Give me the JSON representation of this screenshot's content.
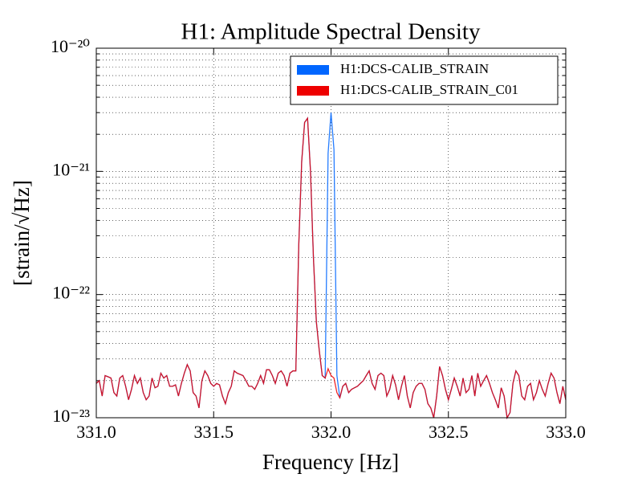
{
  "chart_data": {
    "type": "line",
    "title": "H1: Amplitude Spectral Density",
    "xlabel": "Frequency [Hz]",
    "ylabel": "[strain/√Hz]",
    "yscale": "log",
    "grid": true,
    "legend": "upper right",
    "xlim": [
      331,
      333
    ],
    "xticks": [
      {
        "value": 331,
        "label": "331.0"
      },
      331.5,
      {
        "value": 332,
        "label": "332.0"
      },
      332.5,
      {
        "value": 333,
        "label": "333.0"
      }
    ],
    "ylim": [
      1e-23,
      1e-20
    ],
    "yticks": [
      {
        "value": 1e-23,
        "label": "10⁻²³"
      },
      {
        "value": 1e-22,
        "label": "10⁻²²"
      },
      {
        "value": 1e-21,
        "label": "10⁻²¹"
      },
      {
        "value": 1e-20,
        "label": "10⁻²⁰"
      }
    ],
    "x": [
      331,
      331.0125,
      331.025,
      331.0375,
      331.05,
      331.0625,
      331.075,
      331.0875,
      331.1,
      331.1125,
      331.125,
      331.1375,
      331.15,
      331.1625,
      331.175,
      331.1875,
      331.2,
      331.2125,
      331.225,
      331.2375,
      331.25,
      331.2625,
      331.275,
      331.2875,
      331.3,
      331.3125,
      331.325,
      331.3375,
      331.35,
      331.3625,
      331.375,
      331.3875,
      331.4,
      331.4125,
      331.425,
      331.4375,
      331.45,
      331.4625,
      331.475,
      331.4875,
      331.5,
      331.5125,
      331.525,
      331.5375,
      331.55,
      331.5625,
      331.575,
      331.5875,
      331.6,
      331.6125,
      331.625,
      331.6375,
      331.65,
      331.6625,
      331.675,
      331.6875,
      331.7,
      331.7125,
      331.725,
      331.7375,
      331.75,
      331.7625,
      331.775,
      331.7875,
      331.8,
      331.8125,
      331.825,
      331.8375,
      331.85,
      331.8625,
      331.875,
      331.8875,
      331.9,
      331.9125,
      331.925,
      331.9375,
      331.95,
      331.9625,
      331.975,
      331.9875,
      332,
      332.0125,
      332.025,
      332.0375,
      332.05,
      332.0625,
      332.075,
      332.0875,
      332.1,
      332.1125,
      332.125,
      332.1375,
      332.15,
      332.1625,
      332.175,
      332.1875,
      332.2,
      332.2125,
      332.225,
      332.2375,
      332.25,
      332.2625,
      332.275,
      332.2875,
      332.3,
      332.3125,
      332.325,
      332.3375,
      332.35,
      332.3625,
      332.375,
      332.3875,
      332.4,
      332.4125,
      332.425,
      332.4375,
      332.45,
      332.4625,
      332.475,
      332.4875,
      332.5,
      332.5125,
      332.525,
      332.5375,
      332.55,
      332.5625,
      332.575,
      332.5875,
      332.6,
      332.6125,
      332.625,
      332.6375,
      332.65,
      332.6625,
      332.675,
      332.6875,
      332.7,
      332.7125,
      332.725,
      332.7375,
      332.75,
      332.7625,
      332.775,
      332.7875,
      332.8,
      332.8125,
      332.825,
      332.8375,
      332.85,
      332.8625,
      332.875,
      332.8875,
      332.9,
      332.9125,
      332.925,
      332.9375,
      332.95,
      332.9625,
      332.975,
      332.9875,
      333
    ],
    "series": [
      {
        "name": "H1:DCS-CALIB_STRAIN",
        "color": "#0066ff",
        "values": [
          1.9e-23,
          2e-23,
          1.5e-23,
          2.2e-23,
          2.15e-23,
          2.1e-23,
          1.6e-23,
          1.5e-23,
          2.1e-23,
          2.2e-23,
          1.8e-23,
          1.4e-23,
          1.7e-23,
          2.2e-23,
          1.9e-23,
          2.1e-23,
          1.6e-23,
          1.4e-23,
          1.5e-23,
          2.1e-23,
          1.75e-23,
          1.8e-23,
          2.3e-23,
          2.1e-23,
          2.2e-23,
          1.8e-23,
          1.8e-23,
          1.85e-23,
          1.5e-23,
          1.9e-23,
          2.3e-23,
          2.7e-23,
          2.4e-23,
          1.6e-23,
          1.5e-23,
          1.2e-23,
          2e-23,
          2.4e-23,
          2.2e-23,
          1.9e-23,
          1.8e-23,
          1.9e-23,
          1.85e-23,
          1.5e-23,
          1.3e-23,
          1.6e-23,
          1.8e-23,
          2.4e-23,
          2.3e-23,
          2.25e-23,
          2.2e-23,
          2e-23,
          1.8e-23,
          1.8e-23,
          1.7e-23,
          1.9e-23,
          2.2e-23,
          1.9e-23,
          2.45e-23,
          2.45e-23,
          2.2e-23,
          1.9e-23,
          2.3e-23,
          2.4e-23,
          2.2e-23,
          1.8e-23,
          2.3e-23,
          2.4e-23,
          2.4e-23,
          2.5e-22,
          1.2e-21,
          2.5e-21,
          2.7e-21,
          1e-21,
          2e-22,
          6e-23,
          3.5e-23,
          2.2e-23,
          2.1e-23,
          1.4e-21,
          3e-21,
          1.5e-21,
          2.2e-23,
          1.45e-23,
          1.8e-23,
          1.9e-23,
          1.6e-23,
          1.7e-23,
          1.75e-23,
          1.8e-23,
          1.9e-23,
          2e-23,
          2.2e-23,
          2.4e-23,
          1.9e-23,
          1.7e-23,
          2.2e-23,
          2.3e-23,
          2.2e-23,
          1.5e-23,
          1.7e-23,
          2.2e-23,
          1.85e-23,
          1.4e-23,
          1.8e-23,
          2.2e-23,
          1.5e-23,
          1.2e-23,
          1.6e-23,
          1.8e-23,
          1.9e-23,
          1.9e-23,
          1.7e-23,
          1.3e-23,
          1.2e-23,
          1e-23,
          1.5e-23,
          2.6e-23,
          2.2e-23,
          1.7e-23,
          1.4e-23,
          1.7e-23,
          2.1e-23,
          1.8e-23,
          1.5e-23,
          2.1e-23,
          1.6e-23,
          1.7e-23,
          2.2e-23,
          1.5e-23,
          2.3e-23,
          1.8e-23,
          2e-23,
          2.2e-23,
          1.9e-23,
          1.6e-23,
          1.4e-23,
          1.2e-23,
          1.75e-23,
          1.5e-23,
          1e-23,
          1.1e-23,
          1.9e-23,
          2.4e-23,
          2.2e-23,
          1.5e-23,
          1.4e-23,
          1.8e-23,
          1.9e-23,
          1.4e-23,
          1.6e-23,
          2e-23,
          1.7e-23,
          1.5e-23,
          1.9e-23,
          2.3e-23,
          2.1e-23,
          1.6e-23,
          1.3e-23,
          1.8e-23,
          1.4e-23
        ]
      },
      {
        "name": "H1:DCS-CALIB_STRAIN_C01",
        "color": "#ee0000",
        "values": [
          1.9e-23,
          2e-23,
          1.5e-23,
          2.2e-23,
          2.15e-23,
          2.1e-23,
          1.6e-23,
          1.5e-23,
          2.1e-23,
          2.2e-23,
          1.8e-23,
          1.4e-23,
          1.7e-23,
          2.2e-23,
          1.9e-23,
          2.1e-23,
          1.6e-23,
          1.4e-23,
          1.5e-23,
          2.1e-23,
          1.75e-23,
          1.8e-23,
          2.3e-23,
          2.1e-23,
          2.2e-23,
          1.8e-23,
          1.8e-23,
          1.85e-23,
          1.5e-23,
          1.9e-23,
          2.3e-23,
          2.7e-23,
          2.4e-23,
          1.6e-23,
          1.5e-23,
          1.2e-23,
          2e-23,
          2.4e-23,
          2.2e-23,
          1.9e-23,
          1.8e-23,
          1.9e-23,
          1.85e-23,
          1.5e-23,
          1.3e-23,
          1.6e-23,
          1.8e-23,
          2.4e-23,
          2.3e-23,
          2.25e-23,
          2.2e-23,
          2e-23,
          1.8e-23,
          1.8e-23,
          1.7e-23,
          1.9e-23,
          2.2e-23,
          1.9e-23,
          2.45e-23,
          2.45e-23,
          2.2e-23,
          1.9e-23,
          2.3e-23,
          2.4e-23,
          2.2e-23,
          1.8e-23,
          2.3e-23,
          2.4e-23,
          2.4e-23,
          2.5e-22,
          1.2e-21,
          2.5e-21,
          2.7e-21,
          1e-21,
          2e-22,
          6e-23,
          3.5e-23,
          2.2e-23,
          2.1e-23,
          2.5e-23,
          2.2e-23,
          2.1e-23,
          1.6e-23,
          1.45e-23,
          1.8e-23,
          1.9e-23,
          1.6e-23,
          1.7e-23,
          1.75e-23,
          1.8e-23,
          1.9e-23,
          2e-23,
          2.2e-23,
          2.4e-23,
          1.9e-23,
          1.7e-23,
          2.2e-23,
          2.3e-23,
          2.2e-23,
          1.5e-23,
          1.7e-23,
          2.2e-23,
          1.85e-23,
          1.4e-23,
          1.8e-23,
          2.2e-23,
          1.5e-23,
          1.2e-23,
          1.6e-23,
          1.8e-23,
          1.9e-23,
          1.9e-23,
          1.7e-23,
          1.3e-23,
          1.2e-23,
          1e-23,
          1.5e-23,
          2.6e-23,
          2.2e-23,
          1.7e-23,
          1.4e-23,
          1.7e-23,
          2.1e-23,
          1.8e-23,
          1.5e-23,
          2.1e-23,
          1.6e-23,
          1.7e-23,
          2.2e-23,
          1.5e-23,
          2.3e-23,
          1.8e-23,
          2e-23,
          2.2e-23,
          1.9e-23,
          1.6e-23,
          1.4e-23,
          1.2e-23,
          1.75e-23,
          1.5e-23,
          1e-23,
          1.1e-23,
          1.9e-23,
          2.4e-23,
          2.2e-23,
          1.5e-23,
          1.4e-23,
          1.8e-23,
          1.9e-23,
          1.4e-23,
          1.6e-23,
          2e-23,
          1.7e-23,
          1.5e-23,
          1.9e-23,
          2.3e-23,
          2.1e-23,
          1.6e-23,
          1.3e-23,
          1.8e-23,
          1.4e-23
        ]
      }
    ]
  }
}
